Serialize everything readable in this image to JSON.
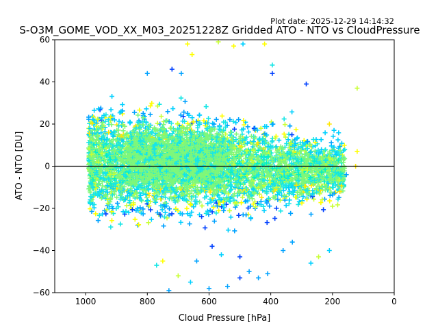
{
  "chart_data": {
    "type": "scatter",
    "marker": "plus",
    "plot_date": "Plot date: 2025-12-29 14:14:32",
    "title": "S-O3M_GOME_VOD_XX_M03_20251228Z Gridded ATO - NTO vs CloudPressure",
    "xlabel": "Cloud Pressure [hPa]",
    "ylabel": "ATO - NTO [DU]",
    "xlim": [
      1100,
      0
    ],
    "ylim": [
      -60,
      60
    ],
    "x_ticks": [
      1000,
      800,
      600,
      400,
      200,
      0
    ],
    "y_ticks": [
      -60,
      -40,
      -20,
      0,
      20,
      40,
      60
    ],
    "hline_y": 0,
    "colors": [
      "#7ef77a",
      "#17e6e6",
      "#00d0ff",
      "#00a2ff",
      "#0040ff",
      "#ffe600",
      "#c8ff33",
      "#ffff00",
      "#00f0c8"
    ],
    "outliers": [
      {
        "x": 670,
        "y": 58,
        "c": "#ffff00"
      },
      {
        "x": 655,
        "y": 53,
        "c": "#ffff00"
      },
      {
        "x": 570,
        "y": 59,
        "c": "#c8ff33"
      },
      {
        "x": 520,
        "y": 57,
        "c": "#ffff00"
      },
      {
        "x": 490,
        "y": 58,
        "c": "#00d0ff"
      },
      {
        "x": 420,
        "y": 58,
        "c": "#ffff00"
      },
      {
        "x": 720,
        "y": 46,
        "c": "#0040ff"
      },
      {
        "x": 690,
        "y": 44,
        "c": "#00a2ff"
      },
      {
        "x": 800,
        "y": 44,
        "c": "#00a2ff"
      },
      {
        "x": 395,
        "y": 44,
        "c": "#0040ff"
      },
      {
        "x": 285,
        "y": 39,
        "c": "#0040ff"
      },
      {
        "x": 120,
        "y": 37,
        "c": "#c8ff33"
      },
      {
        "x": 395,
        "y": 48,
        "c": "#17e6e6"
      },
      {
        "x": 210,
        "y": 20,
        "c": "#ffe600"
      },
      {
        "x": 195,
        "y": 17,
        "c": "#00d0ff"
      },
      {
        "x": 120,
        "y": 7,
        "c": "#ffff00"
      },
      {
        "x": 125,
        "y": 0,
        "c": "#ffe600"
      },
      {
        "x": 155,
        "y": -4,
        "c": "#00a2ff"
      },
      {
        "x": 200,
        "y": -19,
        "c": "#c8ff33"
      },
      {
        "x": 210,
        "y": -40,
        "c": "#00d0ff"
      },
      {
        "x": 245,
        "y": -43,
        "c": "#c8ff33"
      },
      {
        "x": 270,
        "y": -46,
        "c": "#00d0ff"
      },
      {
        "x": 640,
        "y": -45,
        "c": "#00a2ff"
      },
      {
        "x": 600,
        "y": -58,
        "c": "#00a2ff"
      },
      {
        "x": 540,
        "y": -57,
        "c": "#00a2ff"
      },
      {
        "x": 500,
        "y": -53,
        "c": "#0040ff"
      },
      {
        "x": 470,
        "y": -50,
        "c": "#00a2ff"
      },
      {
        "x": 440,
        "y": -53,
        "c": "#00a2ff"
      },
      {
        "x": 410,
        "y": -51,
        "c": "#00a2ff"
      },
      {
        "x": 730,
        "y": -59,
        "c": "#00a2ff"
      },
      {
        "x": 660,
        "y": -55,
        "c": "#00d0ff"
      },
      {
        "x": 750,
        "y": -45,
        "c": "#ffff00"
      },
      {
        "x": 770,
        "y": -47,
        "c": "#17e6e6"
      },
      {
        "x": 500,
        "y": -43,
        "c": "#0040ff"
      },
      {
        "x": 590,
        "y": -38,
        "c": "#0040ff"
      },
      {
        "x": 360,
        "y": -40,
        "c": "#00a2ff"
      },
      {
        "x": 700,
        "y": -52,
        "c": "#c8ff33"
      },
      {
        "x": 560,
        "y": -42,
        "c": "#00d0ff"
      },
      {
        "x": 330,
        "y": -36,
        "c": "#00a2ff"
      }
    ]
  }
}
